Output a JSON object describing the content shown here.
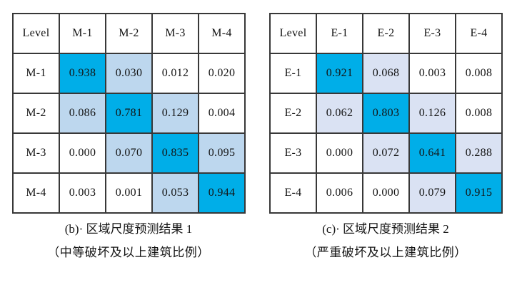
{
  "colors": {
    "diagonal_blue": "#00AEE8",
    "light_blue_left": "#BDD7EE",
    "light_lavender_right": "#DAE2F3",
    "border": "#383838",
    "text": "#141414"
  },
  "tables": [
    {
      "id": "b",
      "light_color": "#BDD7EE",
      "header": [
        "Level",
        "M-1",
        "M-2",
        "M-3",
        "M-4"
      ],
      "rows": [
        {
          "label": "M-1",
          "values": [
            "0.938",
            "0.030",
            "0.012",
            "0.020"
          ],
          "shades": [
            "strong",
            "light",
            "none",
            "none"
          ]
        },
        {
          "label": "M-2",
          "values": [
            "0.086",
            "0.781",
            "0.129",
            "0.004"
          ],
          "shades": [
            "light",
            "strong",
            "light",
            "none"
          ]
        },
        {
          "label": "M-3",
          "values": [
            "0.000",
            "0.070",
            "0.835",
            "0.095"
          ],
          "shades": [
            "none",
            "light",
            "strong",
            "light"
          ]
        },
        {
          "label": "M-4",
          "values": [
            "0.003",
            "0.001",
            "0.053",
            "0.944"
          ],
          "shades": [
            "none",
            "none",
            "light",
            "strong"
          ]
        }
      ],
      "caption_line1": "(b)· 区域尺度预测结果 1",
      "caption_line2": "（中等破坏及以上建筑比例）"
    },
    {
      "id": "c",
      "light_color": "#DAE2F3",
      "header": [
        "Level",
        "E-1",
        "E-2",
        "E-3",
        "E-4"
      ],
      "rows": [
        {
          "label": "E-1",
          "values": [
            "0.921",
            "0.068",
            "0.003",
            "0.008"
          ],
          "shades": [
            "strong",
            "light",
            "none",
            "none"
          ]
        },
        {
          "label": "E-2",
          "values": [
            "0.062",
            "0.803",
            "0.126",
            "0.008"
          ],
          "shades": [
            "light",
            "strong",
            "light",
            "none"
          ]
        },
        {
          "label": "E-3",
          "values": [
            "0.000",
            "0.072",
            "0.641",
            "0.288"
          ],
          "shades": [
            "none",
            "light",
            "strong",
            "light"
          ]
        },
        {
          "label": "E-4",
          "values": [
            "0.006",
            "0.000",
            "0.079",
            "0.915"
          ],
          "shades": [
            "none",
            "none",
            "light",
            "strong"
          ]
        }
      ],
      "caption_line1": "(c)· 区域尺度预测结果 2",
      "caption_line2": "（严重破坏及以上建筑比例）"
    }
  ],
  "chart_data": [
    {
      "type": "heatmap",
      "title": "(b) 区域尺度预测结果 1（中等破坏及以上建筑比例）",
      "categories": [
        "M-1",
        "M-2",
        "M-3",
        "M-4"
      ],
      "matrix": [
        [
          0.938,
          0.03,
          0.012,
          0.02
        ],
        [
          0.086,
          0.781,
          0.129,
          0.004
        ],
        [
          0.0,
          0.07,
          0.835,
          0.095
        ],
        [
          0.003,
          0.001,
          0.053,
          0.944
        ]
      ]
    },
    {
      "type": "heatmap",
      "title": "(c) 区域尺度预测结果 2（严重破坏及以上建筑比例）",
      "categories": [
        "E-1",
        "E-2",
        "E-3",
        "E-4"
      ],
      "matrix": [
        [
          0.921,
          0.068,
          0.003,
          0.008
        ],
        [
          0.062,
          0.803,
          0.126,
          0.008
        ],
        [
          0.0,
          0.072,
          0.641,
          0.288
        ],
        [
          0.006,
          0.0,
          0.079,
          0.915
        ]
      ]
    }
  ]
}
